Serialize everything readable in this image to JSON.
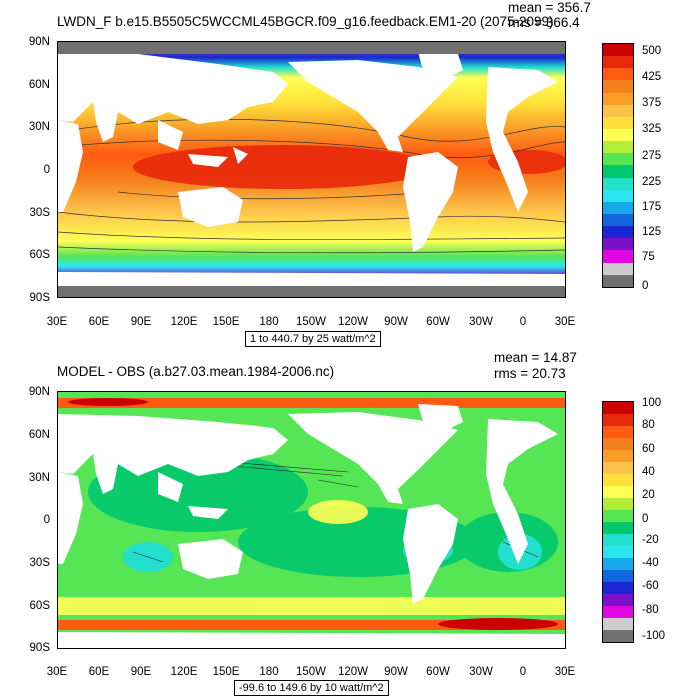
{
  "top": {
    "title": "LWDN_F b.e15.B5505C5WCCML45BGCR.f09_g16.feedback.EM1-20 (2075-2099)",
    "stats": {
      "mean": "mean = 356.7",
      "rms": "rms = 366.4"
    },
    "range_note": "1 to 440.7 by 25 watt/m^2",
    "colorbar_labels": [
      "500",
      "425",
      "375",
      "325",
      "275",
      "225",
      "175",
      "125",
      "75",
      "0"
    ],
    "colorbar_colors": [
      "#cc0000",
      "#e8280a",
      "#ff5a12",
      "#f57f1a",
      "#fa9e28",
      "#fcc24a",
      "#fde03a",
      "#ffff55",
      "#b0ee3a",
      "#55e555",
      "#00c86e",
      "#22e0cc",
      "#2be6f0",
      "#19a8ea",
      "#1166e0",
      "#1a26d2",
      "#7b10c8",
      "#e008e0",
      "#cccccc",
      "#707070"
    ]
  },
  "bottom": {
    "title": "MODEL - OBS (a.b27.03.mean.1984-2006.nc)",
    "stats": {
      "mean": "mean = 14.87",
      "rms": "rms = 20.73"
    },
    "range_note": "-99.6 to 149.6 by 10 watt/m^2",
    "colorbar_labels": [
      "100",
      "80",
      "60",
      "40",
      "20",
      "0",
      "-20",
      "-40",
      "-60",
      "-80",
      "-100"
    ],
    "colorbar_colors": [
      "#cc0000",
      "#e8280a",
      "#ff5a12",
      "#f57f1a",
      "#fa9e28",
      "#fcc24a",
      "#fde03a",
      "#ffff55",
      "#b0ee3a",
      "#55e555",
      "#00c86e",
      "#22e0cc",
      "#2be6f0",
      "#19a8ea",
      "#1166e0",
      "#1a26d2",
      "#7b10c8",
      "#e008e0",
      "#cccccc",
      "#707070"
    ]
  },
  "axes": {
    "lat_labels": [
      "90N",
      "60N",
      "30N",
      "0",
      "30S",
      "60S",
      "90S"
    ],
    "lon_labels": [
      "30E",
      "60E",
      "90E",
      "120E",
      "150E",
      "180",
      "150W",
      "120W",
      "90W",
      "60W",
      "30W",
      "0",
      "30E"
    ]
  },
  "chart_data": [
    {
      "type": "heatmap",
      "title": "LWDN_F b.e15.B5505C5WCCML45BGCR.f09_g16.feedback.EM1-20 (2075-2099)",
      "x_range": [
        "30E",
        "30E"
      ],
      "y_range": [
        "90S",
        "90N"
      ],
      "mean": 356.7,
      "rms": 366.4,
      "contour_min": 1,
      "contour_max": 440.7,
      "contour_interval": 25,
      "units": "watt/m^2"
    },
    {
      "type": "heatmap",
      "title": "MODEL - OBS (a.b27.03.mean.1984-2006.nc)",
      "x_range": [
        "30E",
        "30E"
      ],
      "y_range": [
        "90S",
        "90N"
      ],
      "mean": 14.87,
      "rms": 20.73,
      "contour_min": -99.6,
      "contour_max": 149.6,
      "contour_interval": 10,
      "units": "watt/m^2"
    }
  ]
}
